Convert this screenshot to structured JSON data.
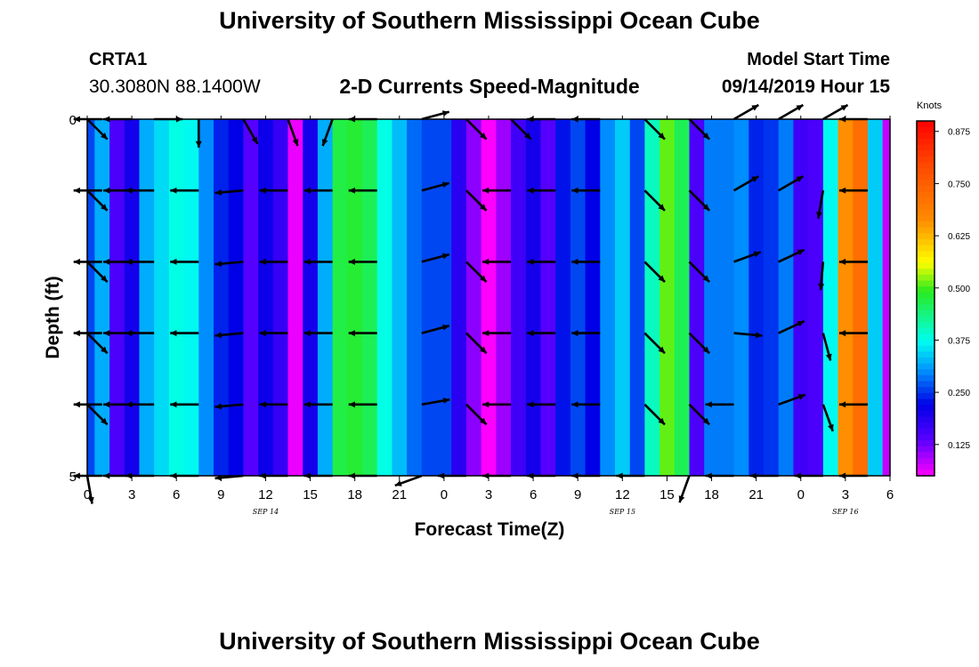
{
  "title": "University of Southern Mississippi Ocean Cube",
  "footer_title": "University of Southern Mississippi Ocean Cube",
  "station": {
    "id": "CRTA1",
    "location": "30.3080N 88.1400W"
  },
  "model": {
    "label": "Model Start Time",
    "value": "09/14/2019 Hour 15"
  },
  "colorbar": {
    "units": "Knots",
    "min": 0.05,
    "max": 0.9,
    "ticks": [
      0.125,
      0.25,
      0.375,
      0.5,
      0.625,
      0.75,
      0.875
    ],
    "tick_labels": [
      "0.125",
      "0.250",
      "0.375",
      "0.500",
      "0.625",
      "0.750",
      "0.875"
    ]
  },
  "chart_data": {
    "type": "heatmap",
    "title": "2-D Currents Speed-Magnitude",
    "xlabel": "Forecast Time(Z)",
    "ylabel": "Depth (ft)",
    "xlim": [
      0,
      54
    ],
    "ylim": [
      0,
      5
    ],
    "x_ticks": [
      0,
      3,
      6,
      9,
      12,
      15,
      18,
      21,
      24,
      27,
      30,
      33,
      36,
      39,
      42,
      45,
      48,
      51,
      54
    ],
    "x_tick_labels": [
      "0",
      "3",
      "6",
      "9",
      "12",
      "15",
      "18",
      "21",
      "0",
      "3",
      "6",
      "9",
      "12",
      "15",
      "18",
      "21",
      "0",
      "3",
      "6"
    ],
    "y_ticks": [
      0,
      5
    ],
    "y_tick_labels": [
      "0",
      "5"
    ],
    "date_labels": [
      {
        "x": 12,
        "text": "SEP 14"
      },
      {
        "x": 36,
        "text": "SEP 15"
      },
      {
        "x": 51,
        "text": "SEP 16"
      }
    ],
    "time_hours": [
      0,
      1,
      2,
      3,
      4,
      5,
      6,
      7,
      8,
      9,
      10,
      11,
      12,
      13,
      14,
      15,
      16,
      17,
      18,
      19,
      20,
      21,
      22,
      23,
      24,
      25,
      26,
      27,
      28,
      29,
      30,
      31,
      32,
      33,
      34,
      35,
      36,
      37,
      38,
      39,
      40,
      41,
      42,
      43,
      44,
      45,
      46,
      47,
      48,
      49,
      50,
      51,
      52,
      53,
      54
    ],
    "speed_knots": [
      0.26,
      0.32,
      0.15,
      0.2,
      0.32,
      0.35,
      0.38,
      0.37,
      0.3,
      0.24,
      0.22,
      0.14,
      0.21,
      0.17,
      0.06,
      0.2,
      0.32,
      0.47,
      0.48,
      0.46,
      0.38,
      0.33,
      0.28,
      0.26,
      0.26,
      0.18,
      0.11,
      0.05,
      0.1,
      0.16,
      0.2,
      0.14,
      0.23,
      0.26,
      0.22,
      0.3,
      0.34,
      0.26,
      0.4,
      0.51,
      0.46,
      0.15,
      0.29,
      0.29,
      0.3,
      0.24,
      0.25,
      0.29,
      0.16,
      0.15,
      0.37,
      0.66,
      0.72,
      0.34,
      0.08
    ],
    "vectors": {
      "depths": [
        0,
        1,
        2,
        3,
        4,
        5
      ],
      "times": [
        0,
        1,
        3,
        4.5,
        7.5,
        10.5,
        13.5,
        16.5,
        19.5,
        22.5,
        25.5,
        28.5,
        31.5,
        34.5,
        37.5,
        40.5,
        43.5,
        46.5,
        49.5,
        52.5
      ],
      "direction_deg": [
        [
          135,
          270,
          270,
          90,
          180,
          150,
          160,
          200,
          270,
          75,
          135,
          135,
          270,
          270,
          135,
          135,
          60,
          60,
          60,
          270
        ],
        [
          135,
          270,
          270,
          270,
          270,
          265,
          270,
          270,
          270,
          75,
          135,
          270,
          270,
          270,
          135,
          135,
          60,
          60,
          190,
          270
        ],
        [
          135,
          270,
          270,
          270,
          270,
          265,
          270,
          270,
          270,
          75,
          135,
          270,
          270,
          270,
          135,
          135,
          70,
          65,
          185,
          270
        ],
        [
          135,
          270,
          270,
          270,
          270,
          265,
          270,
          270,
          270,
          75,
          135,
          270,
          270,
          270,
          135,
          135,
          95,
          65,
          165,
          270
        ],
        [
          135,
          270,
          270,
          270,
          270,
          265,
          270,
          270,
          270,
          80,
          135,
          270,
          270,
          270,
          135,
          135,
          270,
          70,
          160,
          270
        ],
        [
          170,
          270,
          270,
          270,
          270,
          265,
          270,
          270,
          270,
          250,
          270,
          270,
          270,
          270,
          270,
          200,
          270,
          270,
          270,
          270
        ]
      ],
      "speed_knots": [
        [
          0.26,
          0.32,
          0.35,
          0.38,
          0.37,
          0.14,
          0.06,
          0.47,
          0.46,
          0.26,
          0.11,
          0.16,
          0.14,
          0.26,
          0.3,
          0.4,
          0.46,
          0.29,
          0.15,
          0.66
        ],
        [
          0.26,
          0.32,
          0.35,
          0.38,
          0.37,
          0.14,
          0.06,
          0.47,
          0.46,
          0.26,
          0.11,
          0.16,
          0.14,
          0.26,
          0.3,
          0.4,
          0.46,
          0.29,
          0.15,
          0.66
        ],
        [
          0.26,
          0.32,
          0.35,
          0.38,
          0.37,
          0.14,
          0.06,
          0.47,
          0.46,
          0.26,
          0.11,
          0.16,
          0.14,
          0.26,
          0.3,
          0.4,
          0.46,
          0.29,
          0.15,
          0.66
        ],
        [
          0.26,
          0.32,
          0.35,
          0.38,
          0.37,
          0.14,
          0.06,
          0.47,
          0.46,
          0.26,
          0.11,
          0.16,
          0.14,
          0.26,
          0.3,
          0.4,
          0.46,
          0.29,
          0.15,
          0.66
        ],
        [
          0.26,
          0.32,
          0.35,
          0.38,
          0.37,
          0.14,
          0.06,
          0.47,
          0.46,
          0.26,
          0.11,
          0.16,
          0.14,
          0.26,
          0.3,
          0.4,
          0.46,
          0.29,
          0.15,
          0.66
        ],
        [
          0.26,
          0.32,
          0.35,
          0.38,
          0.37,
          0.14,
          0.06,
          0.47,
          0.46,
          0.26,
          0.11,
          0.16,
          0.14,
          0.26,
          0.3,
          0.4,
          0.46,
          0.29,
          0.15,
          0.66
        ]
      ]
    }
  }
}
